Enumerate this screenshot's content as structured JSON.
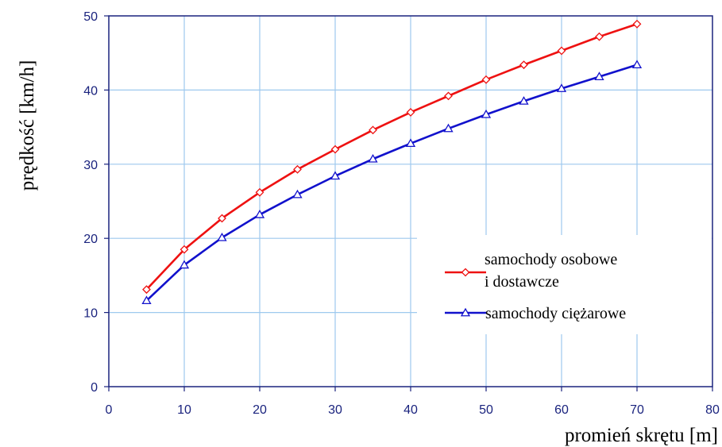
{
  "chart_data": {
    "type": "line",
    "xlabel": "promień skrętu [m]",
    "ylabel": "prędkość [km/h]",
    "xlim": [
      0,
      80
    ],
    "ylim": [
      0,
      50
    ],
    "x_ticks": [
      "0",
      "10",
      "20",
      "30",
      "40",
      "50",
      "60",
      "70",
      "80"
    ],
    "y_ticks": [
      "0",
      "10",
      "20",
      "30",
      "40",
      "50"
    ],
    "grid": true,
    "legend_position": "right",
    "x": [
      5,
      10,
      15,
      20,
      25,
      30,
      35,
      40,
      45,
      50,
      55,
      60,
      65,
      70
    ],
    "series": [
      {
        "name_lines": [
          "samochody osobowe",
          "i dostawcze"
        ],
        "color": "#ee1111",
        "marker": "diamond",
        "values": [
          13.1,
          18.5,
          22.7,
          26.2,
          29.3,
          32.0,
          34.6,
          37.0,
          39.2,
          41.4,
          43.4,
          45.3,
          47.2,
          48.9
        ]
      },
      {
        "name_lines": [
          "samochody ciężarowe"
        ],
        "color": "#1111cc",
        "marker": "triangle",
        "values": [
          11.6,
          16.4,
          20.1,
          23.2,
          25.9,
          28.4,
          30.7,
          32.8,
          34.8,
          36.7,
          38.5,
          40.2,
          41.8,
          43.4
        ]
      }
    ]
  }
}
